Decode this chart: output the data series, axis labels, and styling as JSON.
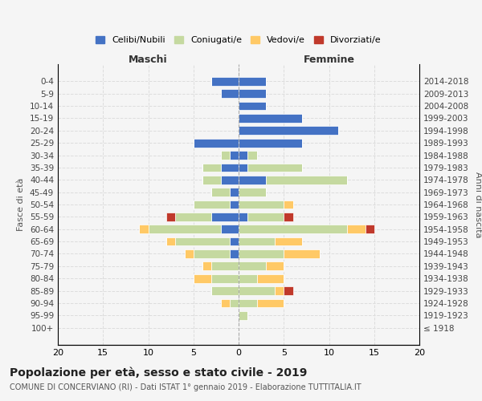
{
  "age_groups": [
    "100+",
    "95-99",
    "90-94",
    "85-89",
    "80-84",
    "75-79",
    "70-74",
    "65-69",
    "60-64",
    "55-59",
    "50-54",
    "45-49",
    "40-44",
    "35-39",
    "30-34",
    "25-29",
    "20-24",
    "15-19",
    "10-14",
    "5-9",
    "0-4"
  ],
  "birth_years": [
    "≤ 1918",
    "1919-1923",
    "1924-1928",
    "1929-1933",
    "1934-1938",
    "1939-1943",
    "1944-1948",
    "1949-1953",
    "1954-1958",
    "1959-1963",
    "1964-1968",
    "1969-1973",
    "1974-1978",
    "1979-1983",
    "1984-1988",
    "1989-1993",
    "1994-1998",
    "1999-2003",
    "2004-2008",
    "2009-2013",
    "2014-2018"
  ],
  "males": {
    "celibe": [
      0,
      0,
      0,
      0,
      0,
      0,
      1,
      1,
      2,
      3,
      1,
      1,
      2,
      2,
      1,
      5,
      0,
      0,
      0,
      2,
      3
    ],
    "coniugato": [
      0,
      0,
      1,
      3,
      3,
      3,
      4,
      6,
      8,
      4,
      4,
      2,
      2,
      2,
      1,
      0,
      0,
      0,
      0,
      0,
      0
    ],
    "vedovo": [
      0,
      0,
      1,
      0,
      2,
      1,
      1,
      1,
      1,
      0,
      0,
      0,
      0,
      0,
      0,
      0,
      0,
      0,
      0,
      0,
      0
    ],
    "divorziato": [
      0,
      0,
      0,
      0,
      0,
      0,
      0,
      0,
      0,
      1,
      0,
      0,
      0,
      0,
      0,
      0,
      0,
      0,
      0,
      0,
      0
    ]
  },
  "females": {
    "nubile": [
      0,
      0,
      0,
      0,
      0,
      0,
      0,
      0,
      0,
      1,
      0,
      0,
      3,
      1,
      1,
      7,
      11,
      7,
      3,
      3,
      3
    ],
    "coniugata": [
      0,
      1,
      2,
      4,
      2,
      3,
      5,
      4,
      12,
      4,
      5,
      3,
      9,
      6,
      1,
      0,
      0,
      0,
      0,
      0,
      0
    ],
    "vedova": [
      0,
      0,
      3,
      1,
      3,
      2,
      4,
      3,
      2,
      0,
      1,
      0,
      0,
      0,
      0,
      0,
      0,
      0,
      0,
      0,
      0
    ],
    "divorziata": [
      0,
      0,
      0,
      1,
      0,
      0,
      0,
      0,
      1,
      1,
      0,
      0,
      0,
      0,
      0,
      0,
      0,
      0,
      0,
      0,
      0
    ]
  },
  "colors": {
    "celibe": "#4472c4",
    "coniugato": "#c5d9a0",
    "vedovo": "#ffc966",
    "divorziato": "#c0392b"
  },
  "title": "Popolazione per età, sesso e stato civile - 2019",
  "subtitle": "COMUNE DI CONCERVIANO (RI) - Dati ISTAT 1° gennaio 2019 - Elaborazione TUTTITALIA.IT",
  "xlabel_maschi": "Maschi",
  "xlabel_femmine": "Femmine",
  "ylabel_left": "Fasce di età",
  "ylabel_right": "Anni di nascita",
  "xlim": 20,
  "bg_color": "#f5f5f5",
  "grid_color": "#dddddd"
}
